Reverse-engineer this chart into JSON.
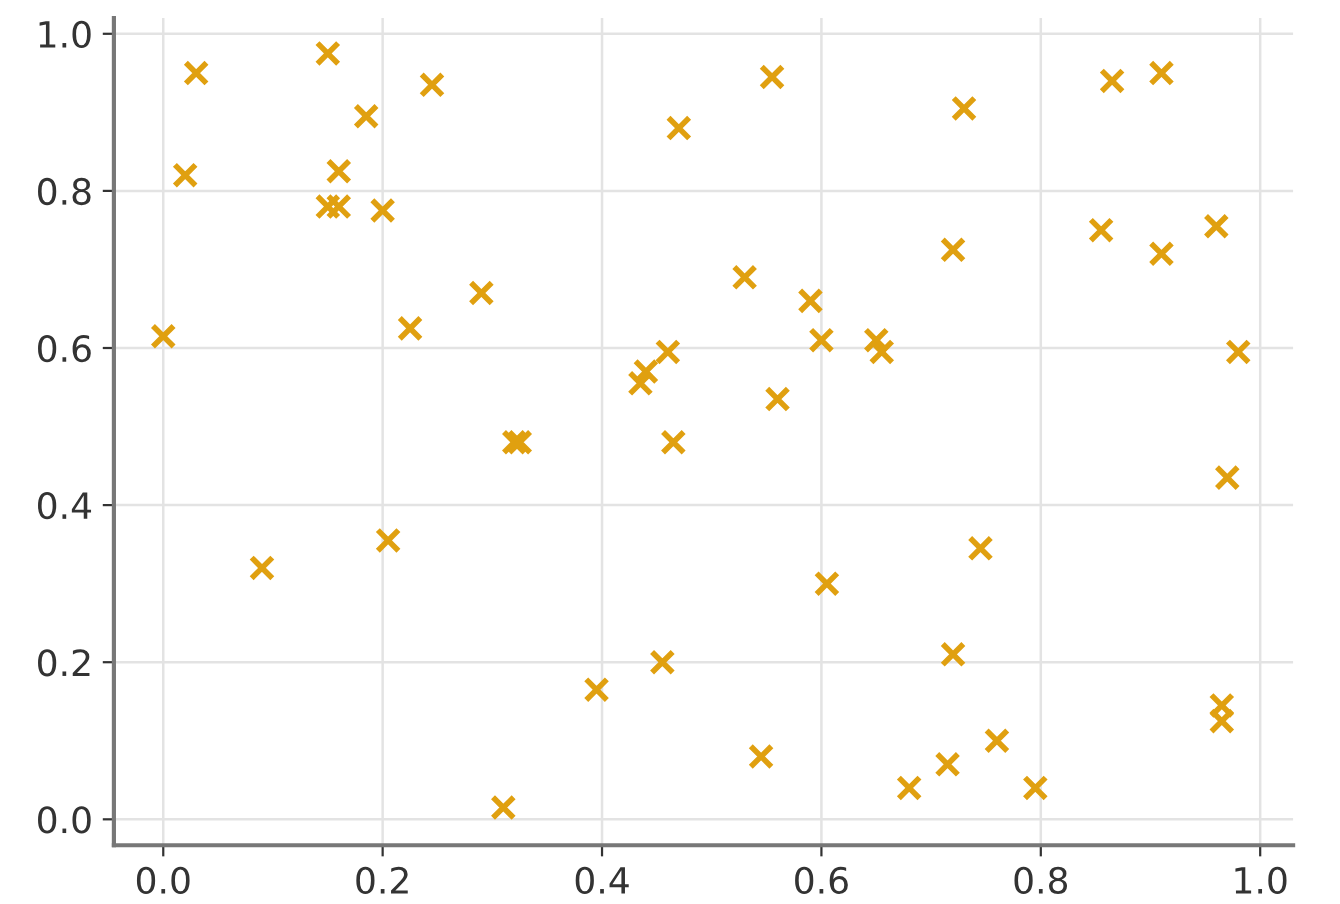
{
  "chart_data": {
    "type": "scatter",
    "marker": "cross",
    "grid": true,
    "color": "#e0a010",
    "x": [
      0.0,
      0.02,
      0.03,
      0.09,
      0.15,
      0.15,
      0.16,
      0.16,
      0.185,
      0.2,
      0.205,
      0.225,
      0.245,
      0.29,
      0.32,
      0.325,
      0.31,
      0.395,
      0.435,
      0.44,
      0.455,
      0.46,
      0.465,
      0.47,
      0.53,
      0.545,
      0.555,
      0.56,
      0.59,
      0.6,
      0.605,
      0.65,
      0.655,
      0.68,
      0.715,
      0.72,
      0.72,
      0.73,
      0.745,
      0.76,
      0.795,
      0.855,
      0.865,
      0.91,
      0.91,
      0.96,
      0.965,
      0.965,
      0.97,
      0.98
    ],
    "values": [
      0.615,
      0.82,
      0.95,
      0.32,
      0.975,
      0.78,
      0.78,
      0.825,
      0.895,
      0.775,
      0.355,
      0.625,
      0.935,
      0.67,
      0.48,
      0.48,
      0.015,
      0.165,
      0.555,
      0.57,
      0.2,
      0.595,
      0.48,
      0.88,
      0.69,
      0.08,
      0.945,
      0.535,
      0.66,
      0.61,
      0.3,
      0.61,
      0.595,
      0.04,
      0.07,
      0.725,
      0.21,
      0.905,
      0.345,
      0.1,
      0.04,
      0.75,
      0.94,
      0.95,
      0.72,
      0.755,
      0.145,
      0.125,
      0.435,
      0.595
    ],
    "xlim": [
      -0.045,
      1.03
    ],
    "ylim": [
      -0.033,
      1.02
    ],
    "xticks": [
      {
        "value": 0,
        "label": "0.0"
      },
      {
        "value": 0.2,
        "label": "0.2"
      },
      {
        "value": 0.4,
        "label": "0.4"
      },
      {
        "value": 0.6,
        "label": "0.6"
      },
      {
        "value": 0.8,
        "label": "0.8"
      },
      {
        "value": 1,
        "label": "1.0"
      }
    ],
    "yticks": [
      {
        "value": 0,
        "label": "0.0"
      },
      {
        "value": 0.2,
        "label": "0.2"
      },
      {
        "value": 0.4,
        "label": "0.4"
      },
      {
        "value": 0.6,
        "label": "0.6"
      },
      {
        "value": 0.8,
        "label": "0.8"
      },
      {
        "value": 1,
        "label": "1.0"
      }
    ]
  }
}
